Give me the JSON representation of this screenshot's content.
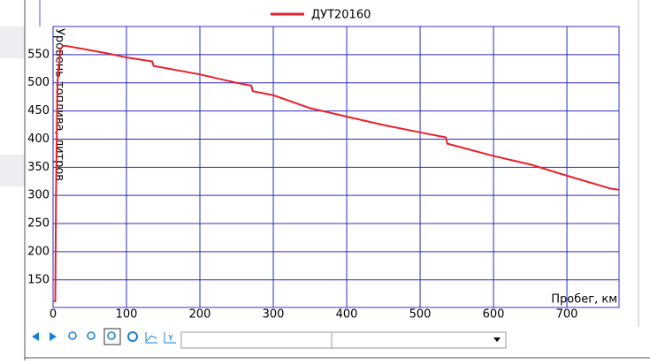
{
  "chart_data": {
    "type": "line",
    "x": [
      1,
      3,
      4,
      6,
      10,
      14,
      20,
      50,
      75,
      100,
      135,
      137,
      200,
      250,
      270,
      272,
      300,
      350,
      400,
      450,
      500,
      535,
      537,
      600,
      650,
      700,
      760,
      771
    ],
    "series": [
      {
        "name": "ДУТ20160",
        "color": "#e8202a",
        "values": [
          112,
          112,
          300,
          500,
          560,
          566,
          565,
          558,
          552,
          545,
          538,
          530,
          515,
          500,
          495,
          485,
          478,
          455,
          440,
          425,
          412,
          403,
          392,
          370,
          355,
          335,
          312,
          310
        ]
      }
    ],
    "xlabel": "Пробег, км",
    "ylabel": "Уровень топлива, литров",
    "xlim": [
      0,
      771
    ],
    "xticks": [
      0,
      100,
      200,
      300,
      400,
      500,
      600,
      700
    ],
    "ylim": [
      101,
      600
    ],
    "yticks": [
      150,
      200,
      250,
      300,
      350,
      400,
      450,
      500,
      550
    ],
    "grid": true,
    "legend": "top"
  }
}
